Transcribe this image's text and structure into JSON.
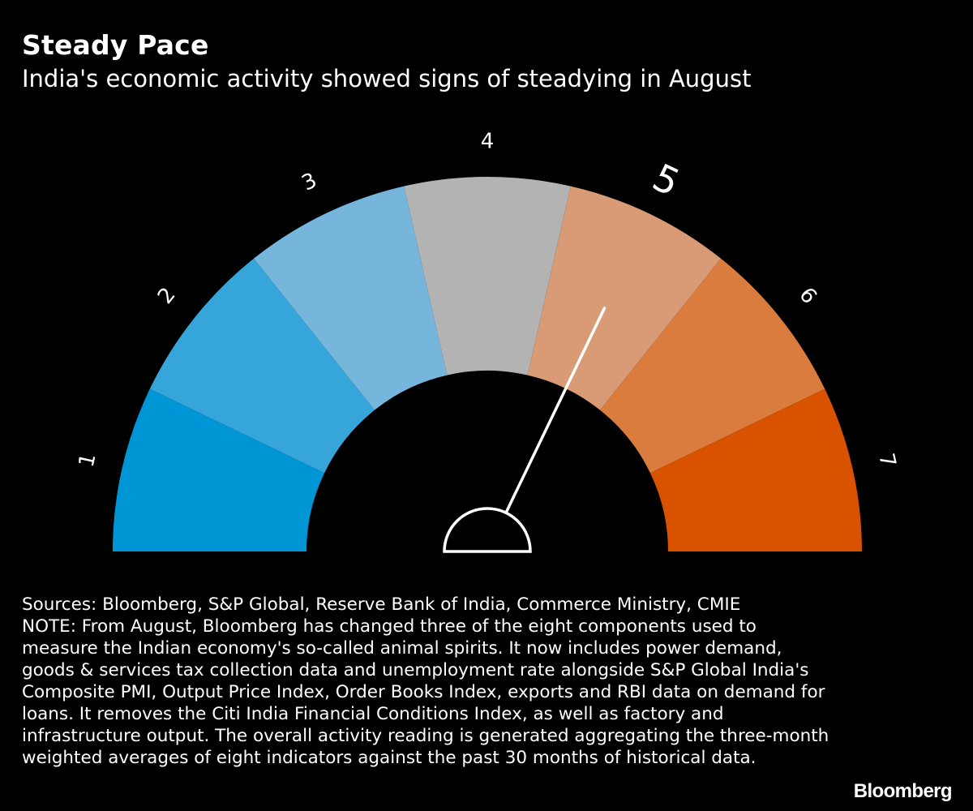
{
  "header": {
    "title": "Steady Pace",
    "subtitle": "India's economic activity showed signs of steadying in August"
  },
  "chart_data": {
    "type": "gauge",
    "scale": [
      1,
      2,
      3,
      4,
      5,
      6,
      7
    ],
    "value": 5,
    "colors": [
      "#0096d6",
      "#36a6da",
      "#76b6dc",
      "#b3b3b3",
      "#d99b76",
      "#d97c3e",
      "#d95200"
    ],
    "needle_color": "#ffffff"
  },
  "footer": {
    "sources": "Sources: Bloomberg, S&P Global, Reserve Bank of India, Commerce Ministry, CMIE",
    "note": "NOTE: From August, Bloomberg has changed three of the eight components used to measure the Indian economy's so-called animal spirits. It now includes power demand, goods & services tax collection data and unemployment rate alongside S&P Global India's Composite PMI, Output Price Index, Order Books Index, exports and RBI data on demand for loans. It removes the Citi India Financial Conditions Index, as well as factory and infrastructure output. The overall activity reading is generated aggregating the three-month weighted averages of eight indicators against the past 30 months of historical data.",
    "brand": "Bloomberg"
  }
}
